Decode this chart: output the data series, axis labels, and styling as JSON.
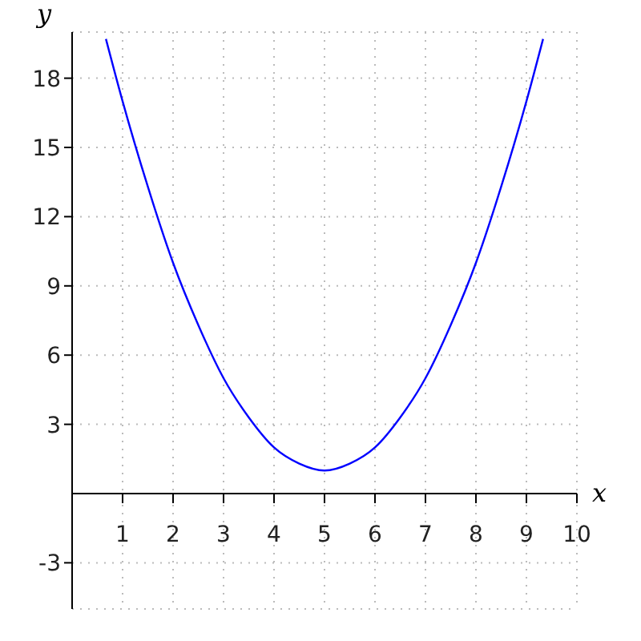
{
  "chart_data": {
    "type": "line",
    "xlabel": "x",
    "ylabel": "y",
    "x": [
      0.67,
      1,
      1.5,
      2,
      2.5,
      3,
      3.5,
      4,
      4.5,
      5,
      5.5,
      6,
      6.5,
      7,
      7.5,
      8,
      8.5,
      9,
      9.33
    ],
    "series": [
      {
        "color": "#0000ff",
        "values": [
          19.7,
          17,
          13.3,
          10,
          7.3,
          5,
          3.3,
          2,
          1.3,
          1,
          1.3,
          2,
          3.3,
          5,
          7.3,
          10,
          13.3,
          17,
          19.7
        ]
      }
    ],
    "xlim": [
      0,
      10
    ],
    "ylim": [
      -5,
      20
    ],
    "xticks": [
      1,
      2,
      3,
      4,
      5,
      6,
      7,
      8,
      9,
      10
    ],
    "yticks": [
      -3,
      3,
      6,
      9,
      12,
      15,
      18
    ],
    "grid": true,
    "marker": "none",
    "line_style": "solid"
  }
}
